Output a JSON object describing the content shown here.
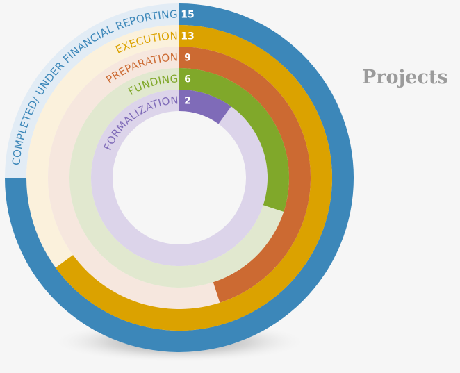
{
  "chart_data": {
    "type": "radial-bar",
    "title": "Projects",
    "max": 20,
    "series": [
      {
        "name": "COMPLETED/ UNDER FINANCIAL REPORTING",
        "value": 15,
        "color": "#3c87b9",
        "track": "#e2ecf5"
      },
      {
        "name": "EXECUTION",
        "value": 13,
        "color": "#dba200",
        "track": "#fbf1dc"
      },
      {
        "name": "PREPARATION",
        "value": 9,
        "color": "#cc6a32",
        "track": "#f6e7de"
      },
      {
        "name": "FUNDING",
        "value": 6,
        "color": "#80a82a",
        "track": "#e1e8cf"
      },
      {
        "name": "FORMALIZATION",
        "value": 2,
        "color": "#7f6bb8",
        "track": "#dcd4ea"
      }
    ]
  }
}
